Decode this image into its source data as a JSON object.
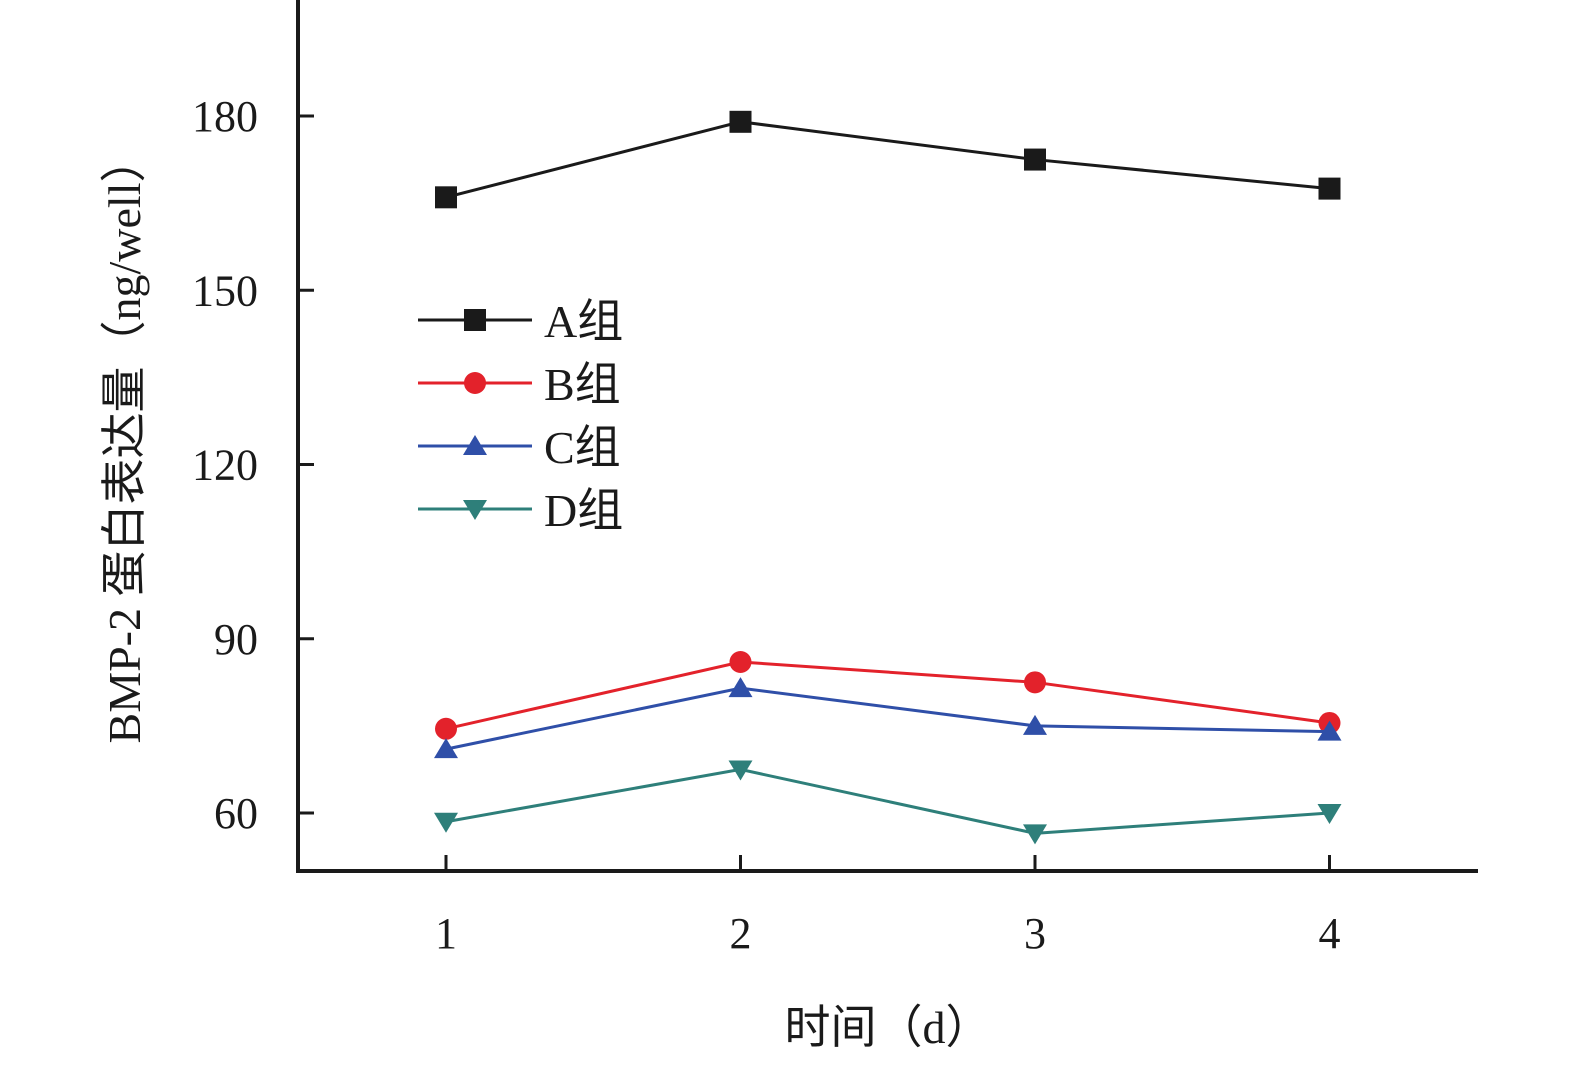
{
  "chart_data": {
    "type": "line",
    "x": [
      1,
      2,
      3,
      4
    ],
    "xlabel": "时间（d）",
    "ylabel": "BMP-2 蛋白表达量（ng/well）",
    "xlim": [
      0.5,
      4.5
    ],
    "ylim": [
      50,
      200
    ],
    "xticks": [
      1,
      2,
      3,
      4
    ],
    "yticks": [
      60,
      90,
      120,
      150,
      180
    ],
    "grid": false,
    "legend_position": "center-left",
    "series": [
      {
        "name": "A组",
        "values": [
          166,
          179,
          172.5,
          167.5
        ],
        "color": "#1a1a1a",
        "marker": "square"
      },
      {
        "name": "B组",
        "values": [
          74.5,
          86,
          82.5,
          75.5
        ],
        "color": "#e3222b",
        "marker": "circle"
      },
      {
        "name": "C组",
        "values": [
          71,
          81.5,
          75,
          74
        ],
        "color": "#2f4fa8",
        "marker": "triangle-up"
      },
      {
        "name": "D组",
        "values": [
          58.5,
          67.5,
          56.5,
          60
        ],
        "color": "#2e7f7a",
        "marker": "triangle-down"
      }
    ]
  }
}
